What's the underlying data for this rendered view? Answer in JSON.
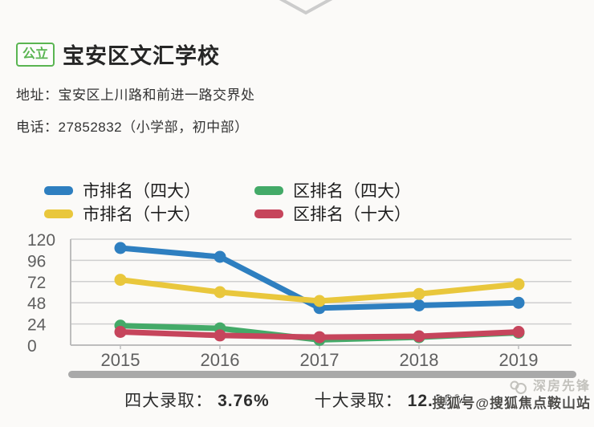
{
  "header": {
    "badge": "公立",
    "title": "宝安区文汇学校",
    "address_label": "地址：",
    "address": "宝安区上川路和前进一路交界处",
    "phone_label": "电话：",
    "phone": "27852832（小学部，初中部）"
  },
  "chart_data": {
    "type": "line",
    "x": [
      "2015",
      "2016",
      "2017",
      "2018",
      "2019"
    ],
    "series": [
      {
        "name": "市排名（四大）",
        "color": "#2e7fc0",
        "values": [
          110,
          100,
          42,
          45,
          48
        ]
      },
      {
        "name": "市排名（十大）",
        "color": "#e9c73c",
        "values": [
          74,
          60,
          50,
          58,
          69
        ]
      },
      {
        "name": "区排名（四大）",
        "color": "#43aa68",
        "values": [
          22,
          19,
          6,
          9,
          14
        ]
      },
      {
        "name": "区排名（十大）",
        "color": "#c6455c",
        "values": [
          15,
          11,
          9,
          10,
          15
        ]
      }
    ],
    "ylim": [
      0,
      120
    ],
    "yticks": [
      0,
      24,
      48,
      72,
      96,
      120
    ],
    "grid": true,
    "legend_position": "top"
  },
  "stats": {
    "four_label": "四大录取：",
    "four_value": "3.76%",
    "ten_label": "十大录取：",
    "ten_value": "12.20%"
  },
  "watermark": {
    "brand": "深房先锋",
    "account": "搜狐号@搜狐焦点鞍山站"
  },
  "colors": {
    "badge_green": "#5ab552",
    "chevron": "#cccccc",
    "grid_line": "#cfcfcf",
    "axis_line": "#bdbdbd",
    "tick_text": "#5f5f5f",
    "divider_bar": "#a9a9a9"
  }
}
